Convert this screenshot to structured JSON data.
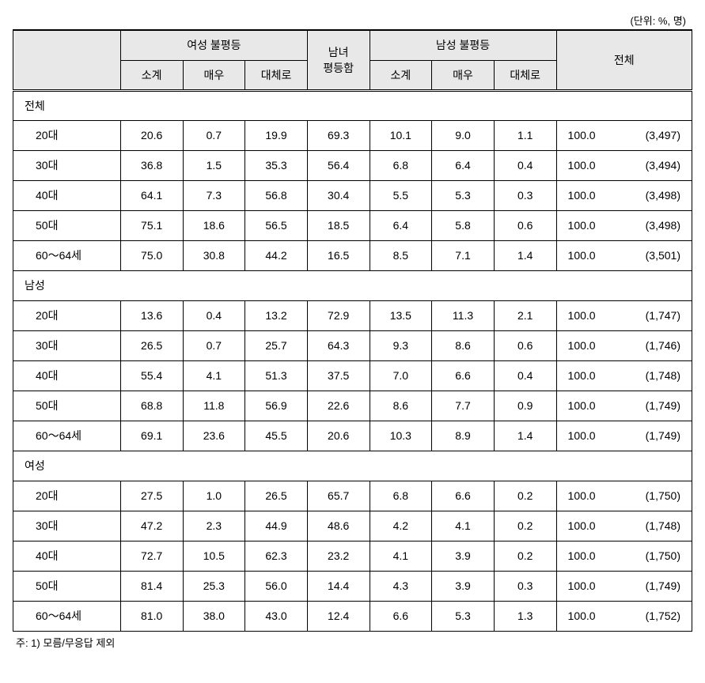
{
  "unit_text": "(단위: %, 명)",
  "header": {
    "female_ineq": "여성 불평등",
    "equal": "남녀\n평등함",
    "male_ineq": "남성 불평등",
    "total": "전체",
    "sub_subtotal": "소계",
    "sub_very": "매우",
    "sub_mostly": "대체로"
  },
  "sections": [
    {
      "label": "전체",
      "rows": [
        {
          "label": "20대",
          "f_sub": "20.6",
          "f_very": "0.7",
          "f_most": "19.9",
          "equal": "69.3",
          "m_sub": "10.1",
          "m_very": "9.0",
          "m_most": "1.1",
          "tot_pct": "100.0",
          "tot_n": "(3,497)"
        },
        {
          "label": "30대",
          "f_sub": "36.8",
          "f_very": "1.5",
          "f_most": "35.3",
          "equal": "56.4",
          "m_sub": "6.8",
          "m_very": "6.4",
          "m_most": "0.4",
          "tot_pct": "100.0",
          "tot_n": "(3,494)"
        },
        {
          "label": "40대",
          "f_sub": "64.1",
          "f_very": "7.3",
          "f_most": "56.8",
          "equal": "30.4",
          "m_sub": "5.5",
          "m_very": "5.3",
          "m_most": "0.3",
          "tot_pct": "100.0",
          "tot_n": "(3,498)"
        },
        {
          "label": "50대",
          "f_sub": "75.1",
          "f_very": "18.6",
          "f_most": "56.5",
          "equal": "18.5",
          "m_sub": "6.4",
          "m_very": "5.8",
          "m_most": "0.6",
          "tot_pct": "100.0",
          "tot_n": "(3,498)"
        },
        {
          "label": "60～64세",
          "f_sub": "75.0",
          "f_very": "30.8",
          "f_most": "44.2",
          "equal": "16.5",
          "m_sub": "8.5",
          "m_very": "7.1",
          "m_most": "1.4",
          "tot_pct": "100.0",
          "tot_n": "(3,501)"
        }
      ]
    },
    {
      "label": "남성",
      "rows": [
        {
          "label": "20대",
          "f_sub": "13.6",
          "f_very": "0.4",
          "f_most": "13.2",
          "equal": "72.9",
          "m_sub": "13.5",
          "m_very": "11.3",
          "m_most": "2.1",
          "tot_pct": "100.0",
          "tot_n": "(1,747)"
        },
        {
          "label": "30대",
          "f_sub": "26.5",
          "f_very": "0.7",
          "f_most": "25.7",
          "equal": "64.3",
          "m_sub": "9.3",
          "m_very": "8.6",
          "m_most": "0.6",
          "tot_pct": "100.0",
          "tot_n": "(1,746)"
        },
        {
          "label": "40대",
          "f_sub": "55.4",
          "f_very": "4.1",
          "f_most": "51.3",
          "equal": "37.5",
          "m_sub": "7.0",
          "m_very": "6.6",
          "m_most": "0.4",
          "tot_pct": "100.0",
          "tot_n": "(1,748)"
        },
        {
          "label": "50대",
          "f_sub": "68.8",
          "f_very": "11.8",
          "f_most": "56.9",
          "equal": "22.6",
          "m_sub": "8.6",
          "m_very": "7.7",
          "m_most": "0.9",
          "tot_pct": "100.0",
          "tot_n": "(1,749)"
        },
        {
          "label": "60～64세",
          "f_sub": "69.1",
          "f_very": "23.6",
          "f_most": "45.5",
          "equal": "20.6",
          "m_sub": "10.3",
          "m_very": "8.9",
          "m_most": "1.4",
          "tot_pct": "100.0",
          "tot_n": "(1,749)"
        }
      ]
    },
    {
      "label": "여성",
      "rows": [
        {
          "label": "20대",
          "f_sub": "27.5",
          "f_very": "1.0",
          "f_most": "26.5",
          "equal": "65.7",
          "m_sub": "6.8",
          "m_very": "6.6",
          "m_most": "0.2",
          "tot_pct": "100.0",
          "tot_n": "(1,750)"
        },
        {
          "label": "30대",
          "f_sub": "47.2",
          "f_very": "2.3",
          "f_most": "44.9",
          "equal": "48.6",
          "m_sub": "4.2",
          "m_very": "4.1",
          "m_most": "0.2",
          "tot_pct": "100.0",
          "tot_n": "(1,748)"
        },
        {
          "label": "40대",
          "f_sub": "72.7",
          "f_very": "10.5",
          "f_most": "62.3",
          "equal": "23.2",
          "m_sub": "4.1",
          "m_very": "3.9",
          "m_most": "0.2",
          "tot_pct": "100.0",
          "tot_n": "(1,750)"
        },
        {
          "label": "50대",
          "f_sub": "81.4",
          "f_very": "25.3",
          "f_most": "56.0",
          "equal": "14.4",
          "m_sub": "4.3",
          "m_very": "3.9",
          "m_most": "0.3",
          "tot_pct": "100.0",
          "tot_n": "(1,749)"
        },
        {
          "label": "60～64세",
          "f_sub": "81.0",
          "f_very": "38.0",
          "f_most": "43.0",
          "equal": "12.4",
          "m_sub": "6.6",
          "m_very": "5.3",
          "m_most": "1.3",
          "tot_pct": "100.0",
          "tot_n": "(1,752)"
        }
      ]
    }
  ],
  "footnote": "주: 1) 모름/무응답 제외",
  "style": {
    "header_bg": "#e8e8e8",
    "border_color": "#000000",
    "background": "#ffffff",
    "font_size_pt": 14,
    "type": "table"
  }
}
